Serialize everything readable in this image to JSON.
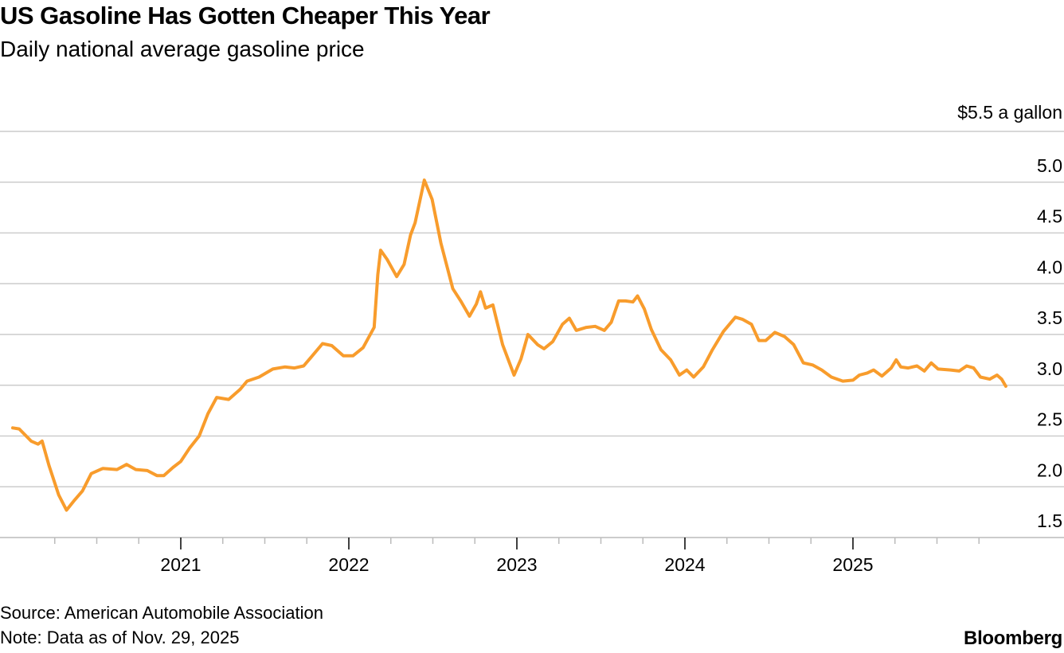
{
  "header": {
    "title": "US Gasoline Has Gotten Cheaper This Year",
    "subtitle": "Daily national average gasoline price"
  },
  "footer": {
    "source": "Source: American Automobile Association",
    "note": "Note: Data as of Nov. 29, 2025",
    "brand": "Bloomberg"
  },
  "chart_data": {
    "type": "line",
    "title": "US Gasoline Has Gotten Cheaper This Year",
    "subtitle": "Daily national average gasoline price",
    "ylabel": "$5.5 a gallon",
    "ylim": [
      1.5,
      5.5
    ],
    "yticks": [
      "1.5",
      "2.0",
      "2.5",
      "3.0",
      "3.5",
      "4.0",
      "4.5",
      "5.0"
    ],
    "xticks": [
      "2021",
      "2022",
      "2023",
      "2024",
      "2025"
    ],
    "xlim": [
      "2020-01-01",
      "2025-11-29"
    ],
    "grid": true,
    "y_axis_side": "right",
    "line_color": "#f89c2c",
    "grid_color": "#cccccc",
    "series": [
      {
        "points": [
          [
            "2020-01-01",
            2.58
          ],
          [
            "2020-01-15",
            2.57
          ],
          [
            "2020-02-10",
            2.45
          ],
          [
            "2020-02-25",
            2.42
          ],
          [
            "2020-03-05",
            2.45
          ],
          [
            "2020-03-20",
            2.21
          ],
          [
            "2020-04-10",
            1.92
          ],
          [
            "2020-04-27",
            1.77
          ],
          [
            "2020-05-15",
            1.87
          ],
          [
            "2020-06-01",
            1.96
          ],
          [
            "2020-06-20",
            2.13
          ],
          [
            "2020-07-15",
            2.18
          ],
          [
            "2020-08-15",
            2.17
          ],
          [
            "2020-09-05",
            2.22
          ],
          [
            "2020-09-25",
            2.17
          ],
          [
            "2020-10-20",
            2.16
          ],
          [
            "2020-11-10",
            2.11
          ],
          [
            "2020-11-25",
            2.11
          ],
          [
            "2020-12-15",
            2.19
          ],
          [
            "2021-01-01",
            2.25
          ],
          [
            "2021-01-20",
            2.38
          ],
          [
            "2021-02-10",
            2.5
          ],
          [
            "2021-03-01",
            2.72
          ],
          [
            "2021-03-20",
            2.88
          ],
          [
            "2021-04-15",
            2.86
          ],
          [
            "2021-05-10",
            2.96
          ],
          [
            "2021-05-25",
            3.04
          ],
          [
            "2021-06-20",
            3.08
          ],
          [
            "2021-07-20",
            3.16
          ],
          [
            "2021-08-15",
            3.18
          ],
          [
            "2021-09-05",
            3.17
          ],
          [
            "2021-09-25",
            3.19
          ],
          [
            "2021-10-10",
            3.27
          ],
          [
            "2021-11-05",
            3.41
          ],
          [
            "2021-11-25",
            3.39
          ],
          [
            "2021-12-20",
            3.29
          ],
          [
            "2022-01-10",
            3.29
          ],
          [
            "2022-02-01",
            3.37
          ],
          [
            "2022-02-25",
            3.57
          ],
          [
            "2022-03-05",
            4.09
          ],
          [
            "2022-03-11",
            4.33
          ],
          [
            "2022-03-25",
            4.24
          ],
          [
            "2022-04-15",
            4.07
          ],
          [
            "2022-05-01",
            4.19
          ],
          [
            "2022-05-15",
            4.48
          ],
          [
            "2022-05-25",
            4.6
          ],
          [
            "2022-06-14",
            5.02
          ],
          [
            "2022-07-01",
            4.83
          ],
          [
            "2022-07-20",
            4.4
          ],
          [
            "2022-08-15",
            3.95
          ],
          [
            "2022-09-01",
            3.83
          ],
          [
            "2022-09-20",
            3.68
          ],
          [
            "2022-10-05",
            3.8
          ],
          [
            "2022-10-14",
            3.92
          ],
          [
            "2022-10-25",
            3.76
          ],
          [
            "2022-11-10",
            3.79
          ],
          [
            "2022-12-01",
            3.4
          ],
          [
            "2022-12-26",
            3.1
          ],
          [
            "2023-01-10",
            3.26
          ],
          [
            "2023-01-25",
            3.5
          ],
          [
            "2023-02-15",
            3.4
          ],
          [
            "2023-03-01",
            3.36
          ],
          [
            "2023-03-20",
            3.43
          ],
          [
            "2023-04-10",
            3.6
          ],
          [
            "2023-04-25",
            3.66
          ],
          [
            "2023-05-10",
            3.54
          ],
          [
            "2023-06-01",
            3.57
          ],
          [
            "2023-06-20",
            3.58
          ],
          [
            "2023-07-10",
            3.54
          ],
          [
            "2023-07-25",
            3.62
          ],
          [
            "2023-08-10",
            3.83
          ],
          [
            "2023-08-25",
            3.83
          ],
          [
            "2023-09-10",
            3.82
          ],
          [
            "2023-09-20",
            3.88
          ],
          [
            "2023-10-05",
            3.75
          ],
          [
            "2023-10-20",
            3.55
          ],
          [
            "2023-11-10",
            3.35
          ],
          [
            "2023-12-01",
            3.25
          ],
          [
            "2023-12-20",
            3.1
          ],
          [
            "2024-01-05",
            3.15
          ],
          [
            "2024-01-20",
            3.08
          ],
          [
            "2024-02-10",
            3.18
          ],
          [
            "2024-03-01",
            3.35
          ],
          [
            "2024-03-25",
            3.53
          ],
          [
            "2024-04-20",
            3.67
          ],
          [
            "2024-05-05",
            3.65
          ],
          [
            "2024-05-25",
            3.6
          ],
          [
            "2024-06-10",
            3.44
          ],
          [
            "2024-06-25",
            3.44
          ],
          [
            "2024-07-15",
            3.52
          ],
          [
            "2024-08-05",
            3.48
          ],
          [
            "2024-08-25",
            3.4
          ],
          [
            "2024-09-15",
            3.22
          ],
          [
            "2024-10-05",
            3.2
          ],
          [
            "2024-10-25",
            3.15
          ],
          [
            "2024-11-15",
            3.08
          ],
          [
            "2024-12-10",
            3.04
          ],
          [
            "2025-01-01",
            3.05
          ],
          [
            "2025-01-15",
            3.1
          ],
          [
            "2025-02-01",
            3.12
          ],
          [
            "2025-02-15",
            3.15
          ],
          [
            "2025-03-05",
            3.09
          ],
          [
            "2025-03-25",
            3.17
          ],
          [
            "2025-04-05",
            3.25
          ],
          [
            "2025-04-15",
            3.18
          ],
          [
            "2025-05-01",
            3.17
          ],
          [
            "2025-05-20",
            3.19
          ],
          [
            "2025-06-05",
            3.14
          ],
          [
            "2025-06-20",
            3.22
          ],
          [
            "2025-07-05",
            3.16
          ],
          [
            "2025-08-01",
            3.15
          ],
          [
            "2025-08-20",
            3.14
          ],
          [
            "2025-09-05",
            3.19
          ],
          [
            "2025-09-20",
            3.17
          ],
          [
            "2025-10-05",
            3.08
          ],
          [
            "2025-10-25",
            3.06
          ],
          [
            "2025-11-10",
            3.1
          ],
          [
            "2025-11-20",
            3.06
          ],
          [
            "2025-11-29",
            2.99
          ]
        ]
      }
    ]
  }
}
